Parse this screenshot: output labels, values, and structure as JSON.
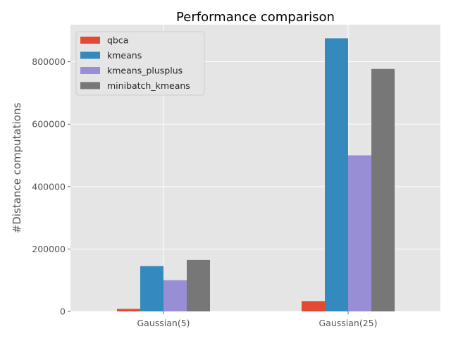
{
  "chart_data": {
    "type": "bar",
    "title": "Performance comparison",
    "xlabel": "",
    "ylabel": "#Distance computations",
    "categories": [
      "Gaussian(5)",
      "Gaussian(25)"
    ],
    "series": [
      {
        "name": "qbca",
        "color": "#E24A33",
        "values": [
          8000,
          33000
        ]
      },
      {
        "name": "kmeans",
        "color": "#348ABD",
        "values": [
          145000,
          875000
        ]
      },
      {
        "name": "kmeans_plusplus",
        "color": "#988ED5",
        "values": [
          100000,
          500000
        ]
      },
      {
        "name": "minibatch_kmeans",
        "color": "#777777",
        "values": [
          165000,
          777000
        ]
      }
    ],
    "ylim": [
      0,
      918750
    ],
    "yticks": [
      0,
      200000,
      400000,
      600000,
      800000
    ],
    "ytick_labels": [
      "0",
      "200000",
      "400000",
      "600000",
      "800000"
    ],
    "grid": true,
    "legend_position": "top-left",
    "style": {
      "plot_background": "#E5E5E5",
      "grid_color": "#FFFFFF",
      "text_color": "#555555",
      "title_color": "#000000"
    }
  }
}
